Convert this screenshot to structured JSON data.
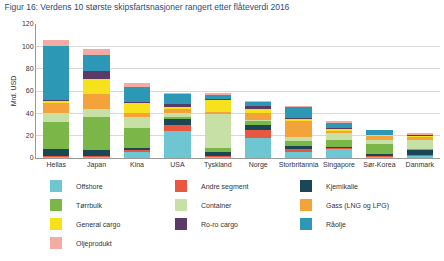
{
  "chart_data": {
    "type": "bar",
    "title": "Figur 16: Verdens 10 største skipsfartsnasjoner rangert etter flåteverdi 2016",
    "y_label": "Mrd. USD",
    "categories": [
      "Hellas",
      "Japan",
      "Kina",
      "USA",
      "Tyskland",
      "Norge",
      "Storbritannia",
      "Singapore",
      "Sør-Korea",
      "Danmark"
    ],
    "stacked": true,
    "grid": true,
    "legend": "bottom",
    "ylim": [
      0,
      120
    ],
    "yticks": [
      0,
      20,
      40,
      60,
      80,
      100,
      120
    ],
    "series": [
      {
        "name": "Offshore",
        "color": "#6ec6d3",
        "values": [
          1,
          1,
          5,
          24,
          1,
          18,
          5,
          8,
          1,
          2
        ]
      },
      {
        "name": "Andre segment",
        "color": "#e8573f",
        "values": [
          0.5,
          1,
          2,
          6,
          1,
          7,
          3,
          1,
          0.5,
          1
        ]
      },
      {
        "name": "Kjemikalie",
        "color": "#1b4656",
        "values": [
          7,
          5,
          2,
          5,
          3,
          5,
          3,
          1,
          2,
          4
        ]
      },
      {
        "name": "Tørrbulk",
        "color": "#7ab648",
        "values": [
          24,
          30,
          18,
          2,
          4,
          3,
          4,
          6,
          9,
          1
        ]
      },
      {
        "name": "Container",
        "color": "#c6e0a6",
        "values": [
          8,
          7,
          10,
          3,
          30,
          1,
          4,
          6,
          4,
          8
        ]
      },
      {
        "name": "Gass (LNG og LPG)",
        "color": "#f4a23a",
        "values": [
          9,
          13,
          3,
          4,
          2,
          6,
          14,
          2,
          3,
          3
        ]
      },
      {
        "name": "General cargo",
        "color": "#f6e21c",
        "values": [
          1.5,
          14,
          9,
          2,
          11,
          4,
          2,
          2,
          1,
          1
        ]
      },
      {
        "name": "Ro-ro cargo",
        "color": "#5b3a68",
        "values": [
          0.5,
          7,
          1,
          2,
          1,
          3,
          1,
          0.5,
          0.5,
          0.5
        ]
      },
      {
        "name": "Råolje",
        "color": "#2c98b6",
        "values": [
          49,
          14,
          14,
          9.5,
          3,
          3,
          10,
          4.5,
          4,
          0.5
        ]
      },
      {
        "name": "Oljeprodukt",
        "color": "#f2aca2",
        "values": [
          5,
          6,
          3,
          0.5,
          2,
          1,
          1,
          2,
          0,
          1
        ]
      }
    ]
  }
}
